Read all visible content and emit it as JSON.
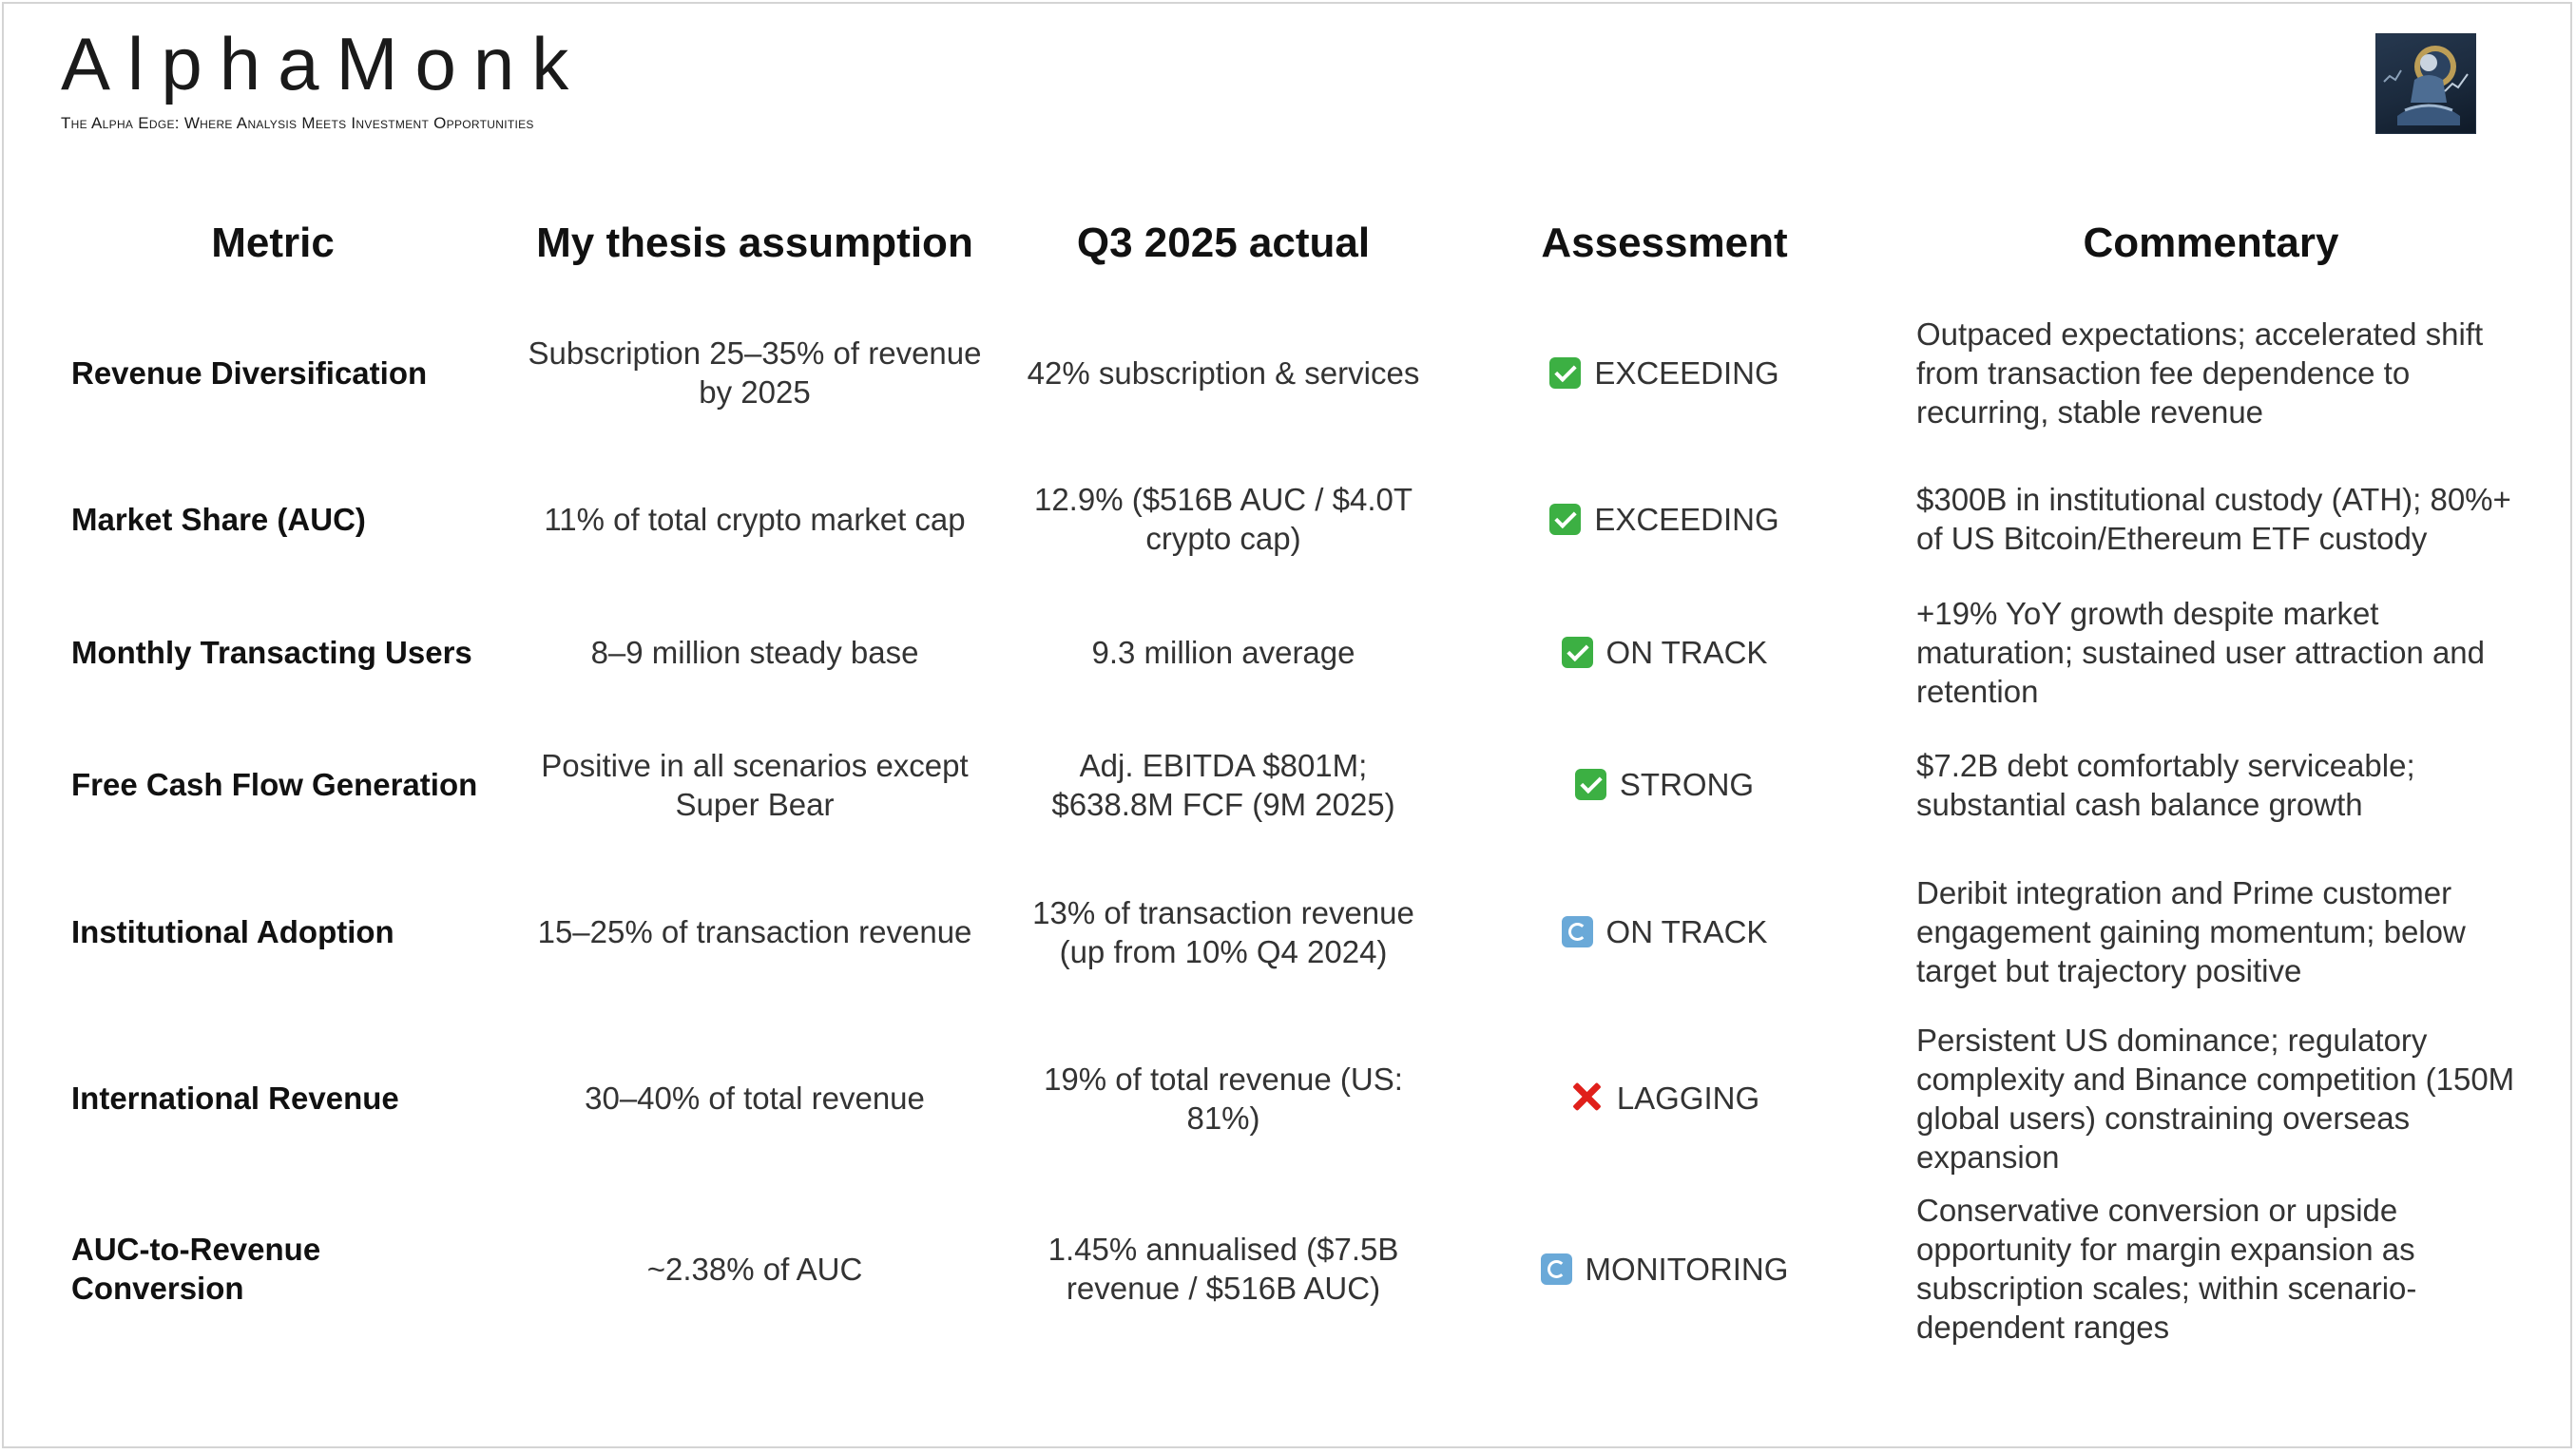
{
  "brand": {
    "name": "AlphaMonk",
    "tagline": "The Alpha Edge: Where Analysis Meets Investment Opportunities",
    "logo_icon": "meditating-monk-logo-icon"
  },
  "table": {
    "headers": {
      "metric": "Metric",
      "thesis": "My thesis assumption",
      "actual": "Q3 2025 actual",
      "assessment": "Assessment",
      "commentary": "Commentary"
    },
    "rows": [
      {
        "metric": "Revenue Diversification",
        "thesis": "Subscription 25–35% of revenue by 2025",
        "actual": "42% subscription & services",
        "icon": "check-icon",
        "status": "EXCEEDING",
        "commentary": "Outpaced expectations; accelerated shift from transaction fee dependence to recurring, stable revenue"
      },
      {
        "metric": "Market Share (AUC)",
        "thesis": "11% of total crypto market cap",
        "actual": "12.9% ($516B AUC / $4.0T crypto cap)",
        "icon": "check-icon",
        "status": "EXCEEDING",
        "commentary": "$300B in institutional custody (ATH); 80%+ of US Bitcoin/Ethereum ETF custody"
      },
      {
        "metric": "Monthly Transacting Users",
        "thesis": "8–9 million steady base",
        "actual": "9.3 million average",
        "icon": "check-icon",
        "status": "ON TRACK",
        "commentary": "+19% YoY growth despite market maturation; sustained user attraction and retention"
      },
      {
        "metric": "Free Cash Flow Generation",
        "thesis": "Positive in all scenarios except Super Bear",
        "actual": "Adj. EBITDA $801M; $638.8M FCF (9M 2025)",
        "icon": "check-icon",
        "status": "STRONG",
        "commentary": "$7.2B debt comfortably serviceable; substantial cash balance growth"
      },
      {
        "metric": "Institutional Adoption",
        "thesis": "15–25% of transaction revenue",
        "actual": "13% of transaction revenue (up from 10% Q4 2024)",
        "icon": "cycle-icon",
        "status": "ON TRACK",
        "commentary": "Deribit integration and Prime customer engagement gaining momentum; below target but trajectory positive"
      },
      {
        "metric": "International Revenue",
        "thesis": "30–40% of total revenue",
        "actual": "19% of total revenue (US: 81%)",
        "icon": "cross-icon",
        "status": "LAGGING",
        "commentary": "Persistent US dominance; regulatory complexity and Binance competition (150M global users) constraining overseas expansion"
      },
      {
        "metric": "AUC-to-Revenue Conversion",
        "thesis": "~2.38% of AUC",
        "actual": "1.45% annualised ($7.5B revenue / $516B AUC)",
        "icon": "cycle-icon",
        "status": "MONITORING",
        "commentary": "Conservative conversion or upside opportunity for margin expansion as subscription scales; within scenario-dependent ranges"
      }
    ]
  },
  "colors": {
    "check": "#3cb043",
    "cycle": "#6aa9d8",
    "cross": "#e0201b"
  }
}
